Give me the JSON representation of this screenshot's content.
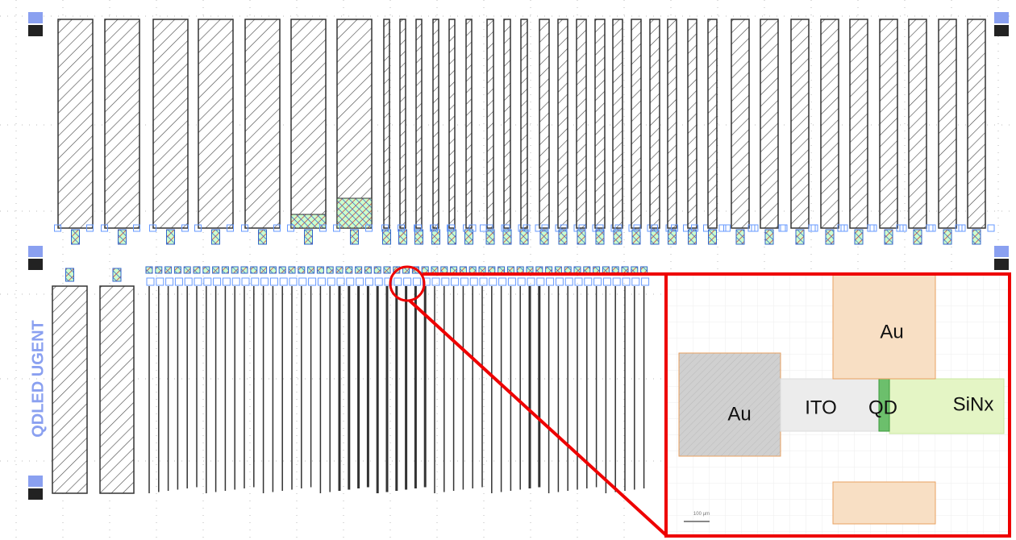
{
  "side_label": "QDLED UGENT",
  "inset": {
    "au_large": "Au",
    "au_top": "Au",
    "ito": "ITO",
    "qd": "QD",
    "sinx": "SiNx",
    "scale_bar": "100 µm"
  }
}
